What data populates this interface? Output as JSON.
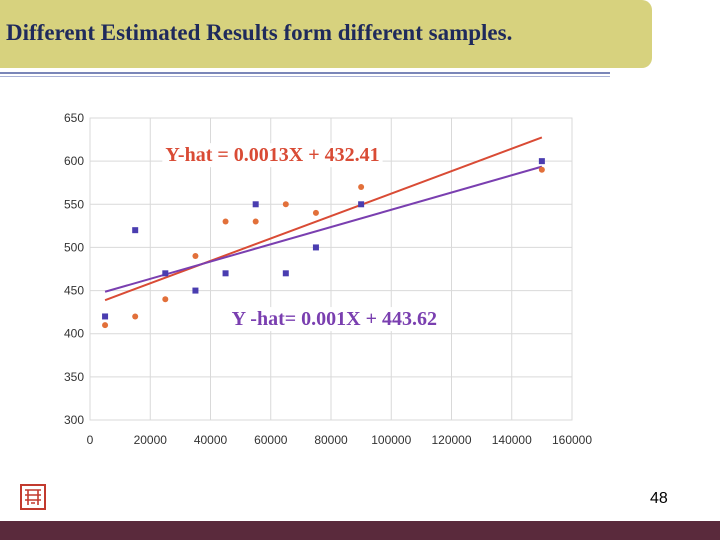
{
  "slide": {
    "title": "Different Estimated Results form different samples.",
    "page_number": "48"
  },
  "colors": {
    "title_bar": "#d7d27e",
    "title_text": "#1f2a5c",
    "red": "#d94b35",
    "purple": "#7a3fb0",
    "orange_points": "#e2703a",
    "blue_points": "#4a3db0",
    "footer": "#5a2a3c"
  },
  "chart_data": {
    "type": "scatter",
    "xlim": [
      0,
      160000
    ],
    "ylim": [
      300,
      650
    ],
    "x_ticks": [
      0,
      20000,
      40000,
      60000,
      80000,
      100000,
      120000,
      140000,
      160000
    ],
    "y_ticks": [
      300,
      350,
      400,
      450,
      500,
      550,
      600,
      650
    ],
    "grid": "horizontal and vertical",
    "series": [
      {
        "marker": "square",
        "color": "#4a3db0",
        "points": [
          [
            5000,
            420
          ],
          [
            15000,
            520
          ],
          [
            25000,
            470
          ],
          [
            35000,
            450
          ],
          [
            45000,
            470
          ],
          [
            55000,
            550
          ],
          [
            65000,
            470
          ],
          [
            75000,
            500
          ],
          [
            90000,
            550
          ],
          [
            150000,
            600
          ]
        ]
      },
      {
        "marker": "circle",
        "color": "#e2703a",
        "points": [
          [
            5000,
            410
          ],
          [
            15000,
            420
          ],
          [
            25000,
            440
          ],
          [
            35000,
            490
          ],
          [
            45000,
            530
          ],
          [
            55000,
            530
          ],
          [
            65000,
            550
          ],
          [
            75000,
            540
          ],
          [
            90000,
            570
          ],
          [
            150000,
            590
          ]
        ]
      }
    ],
    "lines": [
      {
        "color": "#d94b35",
        "slope": 0.0013,
        "intercept": 432.41,
        "x_range": [
          5000,
          150000
        ]
      },
      {
        "color": "#7a3fb0",
        "slope": 0.001,
        "intercept": 443.62,
        "x_range": [
          5000,
          150000
        ]
      }
    ],
    "annotations": [
      {
        "text": "Y-hat = 0.0013X + 432.41",
        "color": "#d94b35",
        "anchor": [
          25000,
          600
        ]
      },
      {
        "text": "Y -hat= 0.001X + 443.62",
        "color": "#7a3fb0",
        "anchor": [
          47000,
          410
        ]
      }
    ]
  }
}
